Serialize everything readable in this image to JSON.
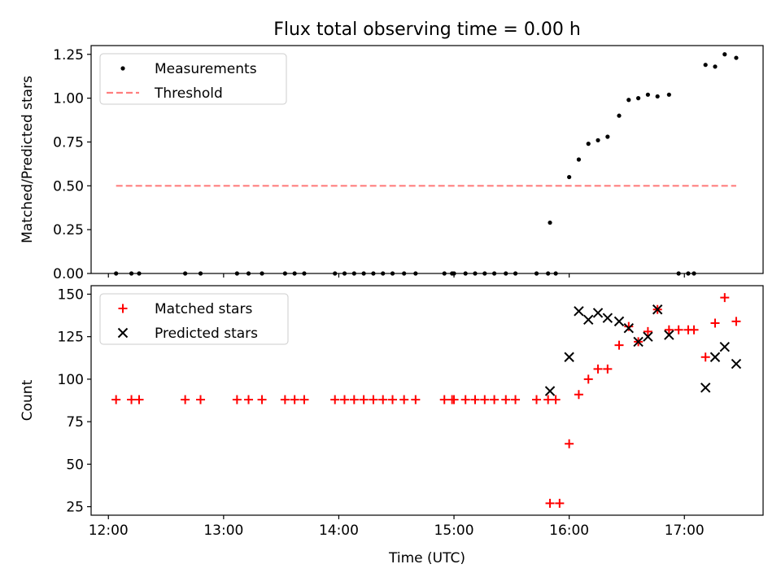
{
  "figure": {
    "title": "Flux total observing time = 0.00 h",
    "xlabel": "Time (UTC)"
  },
  "chart_data": [
    {
      "type": "scatter",
      "title": "Flux total observing time = 0.00 h",
      "xlabel": "",
      "ylabel": "Matched/Predicted stars",
      "xlim": [
        "11:51",
        "17:41"
      ],
      "ylim": [
        0,
        1.3
      ],
      "yticks": [
        0.0,
        0.25,
        0.5,
        0.75,
        1.0,
        1.25
      ],
      "ytick_labels": [
        "0.00",
        "0.25",
        "0.50",
        "0.75",
        "1.00",
        "1.25"
      ],
      "legend_position": "top-left",
      "series": [
        {
          "name": "Measurements",
          "kind": "points",
          "color": "#000000",
          "points": [
            [
              "12:04",
              0.0
            ],
            [
              "12:12",
              0.0
            ],
            [
              "12:16",
              0.0
            ],
            [
              "12:40",
              0.0
            ],
            [
              "12:48",
              0.0
            ],
            [
              "13:07",
              0.0
            ],
            [
              "13:13",
              0.0
            ],
            [
              "13:20",
              0.0
            ],
            [
              "13:32",
              0.0
            ],
            [
              "13:37",
              0.0
            ],
            [
              "13:42",
              0.0
            ],
            [
              "13:58",
              0.0
            ],
            [
              "14:03",
              0.0
            ],
            [
              "14:08",
              0.0
            ],
            [
              "14:13",
              0.0
            ],
            [
              "14:18",
              0.0
            ],
            [
              "14:23",
              0.0
            ],
            [
              "14:28",
              0.0
            ],
            [
              "14:34",
              0.0
            ],
            [
              "14:40",
              0.0
            ],
            [
              "14:55",
              0.0
            ],
            [
              "14:59",
              0.0
            ],
            [
              "15:00",
              0.0
            ],
            [
              "15:06",
              0.0
            ],
            [
              "15:11",
              0.0
            ],
            [
              "15:16",
              0.0
            ],
            [
              "15:21",
              0.0
            ],
            [
              "15:27",
              0.0
            ],
            [
              "15:32",
              0.0
            ],
            [
              "15:43",
              0.0
            ],
            [
              "15:49",
              0.0
            ],
            [
              "15:53",
              0.0
            ],
            [
              "15:50",
              0.29
            ],
            [
              "16:00",
              0.55
            ],
            [
              "16:05",
              0.65
            ],
            [
              "16:10",
              0.74
            ],
            [
              "16:15",
              0.76
            ],
            [
              "16:20",
              0.78
            ],
            [
              "16:26",
              0.9
            ],
            [
              "16:31",
              0.99
            ],
            [
              "16:36",
              1.0
            ],
            [
              "16:41",
              1.02
            ],
            [
              "16:46",
              1.01
            ],
            [
              "16:52",
              1.02
            ],
            [
              "16:57",
              0.0
            ],
            [
              "17:02",
              0.0
            ],
            [
              "17:05",
              0.0
            ],
            [
              "17:11",
              1.19
            ],
            [
              "17:16",
              1.18
            ],
            [
              "17:21",
              1.25
            ],
            [
              "17:27",
              1.23
            ]
          ]
        },
        {
          "name": "Threshold",
          "kind": "dashed-line",
          "color": "#ff7f7f",
          "x": [
            "12:04",
            "17:27"
          ],
          "y": [
            0.5,
            0.5
          ]
        }
      ]
    },
    {
      "type": "scatter",
      "title": "",
      "xlabel": "Time (UTC)",
      "ylabel": "Count",
      "xlim": [
        "11:51",
        "17:41"
      ],
      "ylim": [
        20,
        155
      ],
      "yticks": [
        25,
        50,
        75,
        100,
        125,
        150
      ],
      "ytick_labels": [
        "25",
        "50",
        "75",
        "100",
        "125",
        "150"
      ],
      "xticks": [
        "12:00",
        "13:00",
        "14:00",
        "15:00",
        "16:00",
        "17:00"
      ],
      "xtick_labels": [
        "12:00",
        "13:00",
        "14:00",
        "15:00",
        "16:00",
        "17:00"
      ],
      "legend_position": "top-left",
      "series": [
        {
          "name": "Matched stars",
          "kind": "plus",
          "color": "#ff0000",
          "points": [
            [
              "12:04",
              88
            ],
            [
              "12:12",
              88
            ],
            [
              "12:16",
              88
            ],
            [
              "12:40",
              88
            ],
            [
              "12:48",
              88
            ],
            [
              "13:07",
              88
            ],
            [
              "13:13",
              88
            ],
            [
              "13:20",
              88
            ],
            [
              "13:32",
              88
            ],
            [
              "13:37",
              88
            ],
            [
              "13:42",
              88
            ],
            [
              "13:58",
              88
            ],
            [
              "14:03",
              88
            ],
            [
              "14:08",
              88
            ],
            [
              "14:13",
              88
            ],
            [
              "14:18",
              88
            ],
            [
              "14:23",
              88
            ],
            [
              "14:28",
              88
            ],
            [
              "14:34",
              88
            ],
            [
              "14:40",
              88
            ],
            [
              "14:55",
              88
            ],
            [
              "14:59",
              88
            ],
            [
              "15:00",
              88
            ],
            [
              "15:06",
              88
            ],
            [
              "15:11",
              88
            ],
            [
              "15:16",
              88
            ],
            [
              "15:21",
              88
            ],
            [
              "15:27",
              88
            ],
            [
              "15:32",
              88
            ],
            [
              "15:43",
              88
            ],
            [
              "15:49",
              88
            ],
            [
              "15:53",
              88
            ],
            [
              "15:50",
              27
            ],
            [
              "15:55",
              27
            ],
            [
              "16:00",
              62
            ],
            [
              "16:05",
              91
            ],
            [
              "16:10",
              100
            ],
            [
              "16:15",
              106
            ],
            [
              "16:20",
              106
            ],
            [
              "16:26",
              120
            ],
            [
              "16:31",
              131
            ],
            [
              "16:36",
              122
            ],
            [
              "16:41",
              128
            ],
            [
              "16:46",
              141
            ],
            [
              "16:52",
              129
            ],
            [
              "16:57",
              129
            ],
            [
              "17:02",
              129
            ],
            [
              "17:05",
              129
            ],
            [
              "17:11",
              113
            ],
            [
              "17:16",
              133
            ],
            [
              "17:21",
              148
            ],
            [
              "17:27",
              134
            ]
          ]
        },
        {
          "name": "Predicted stars",
          "kind": "x",
          "color": "#000000",
          "points": [
            [
              "15:50",
              93
            ],
            [
              "16:00",
              113
            ],
            [
              "16:05",
              140
            ],
            [
              "16:10",
              135
            ],
            [
              "16:15",
              139
            ],
            [
              "16:20",
              136
            ],
            [
              "16:26",
              134
            ],
            [
              "16:31",
              130
            ],
            [
              "16:36",
              122
            ],
            [
              "16:41",
              125
            ],
            [
              "16:46",
              141
            ],
            [
              "16:52",
              126
            ],
            [
              "17:11",
              95
            ],
            [
              "17:16",
              113
            ],
            [
              "17:21",
              119
            ],
            [
              "17:27",
              109
            ]
          ]
        }
      ]
    }
  ]
}
